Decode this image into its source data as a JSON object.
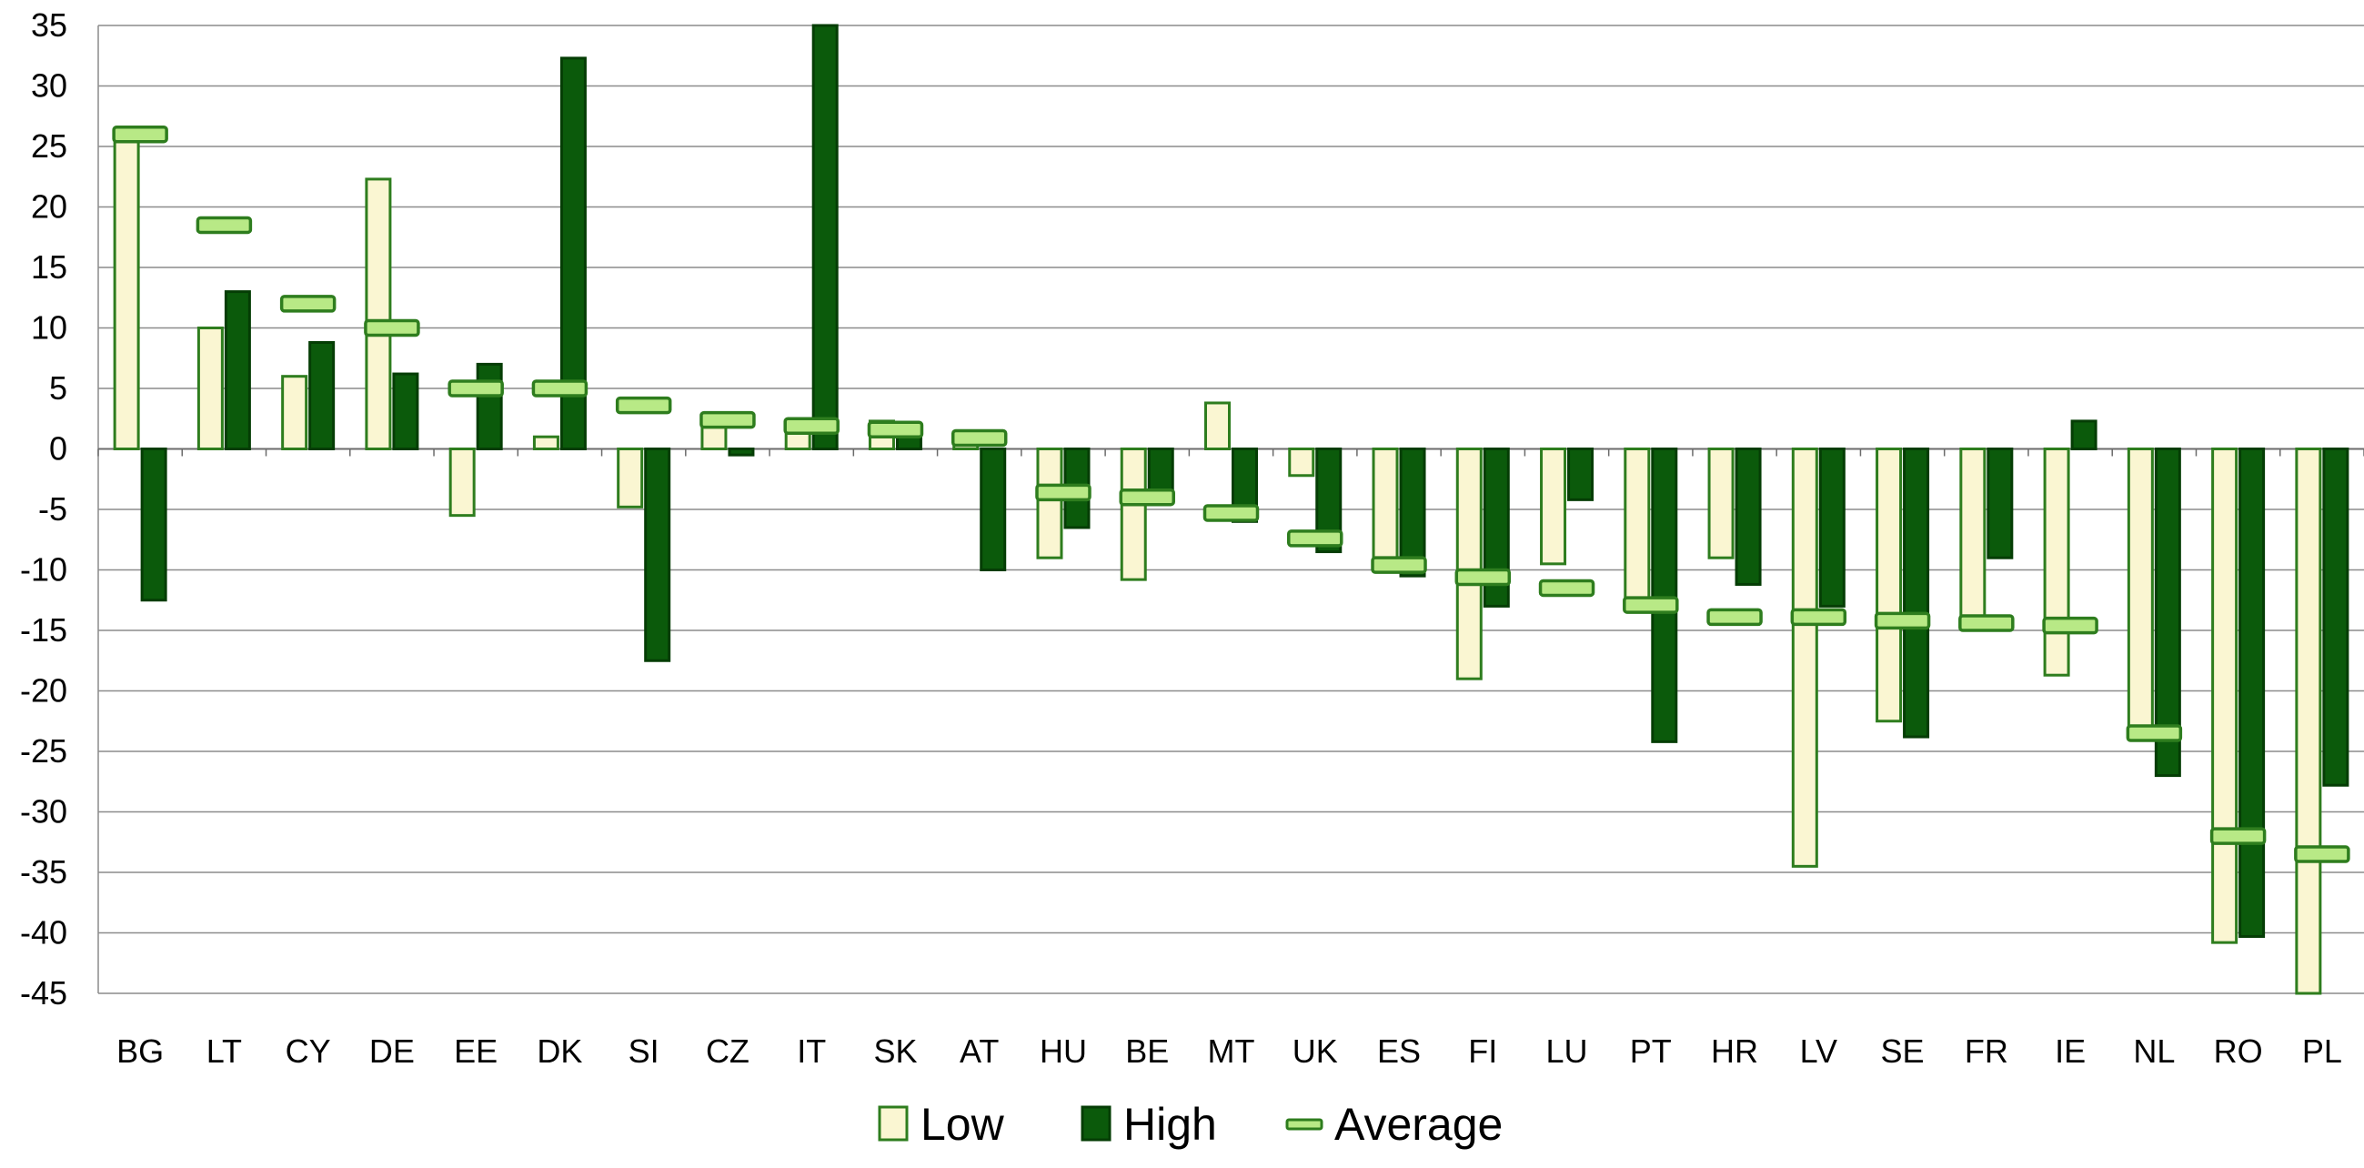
{
  "chart_data": {
    "type": "bar",
    "categories": [
      "BG",
      "LT",
      "CY",
      "DE",
      "EE",
      "DK",
      "SI",
      "CZ",
      "IT",
      "SK",
      "AT",
      "HU",
      "BE",
      "MT",
      "UK",
      "ES",
      "FI",
      "LU",
      "PT",
      "HR",
      "LV",
      "SE",
      "FR",
      "IE",
      "NL",
      "RO",
      "PL"
    ],
    "series": [
      {
        "name": "Low",
        "type": "bar",
        "color": "#FAF6D2",
        "border": "#2E7D1E",
        "values": [
          25.5,
          10,
          6,
          22.3,
          -5.5,
          1,
          -4.8,
          2,
          2,
          2.3,
          0.5,
          -9,
          -10.8,
          3.8,
          -2.2,
          -9.5,
          -19,
          -9.5,
          -13,
          -9,
          -34.5,
          -22.5,
          -14,
          -18.7,
          -24,
          -40.8,
          -45
        ]
      },
      {
        "name": "High",
        "type": "bar",
        "color": "#0B5A0B",
        "border": "#053D05",
        "values": [
          -12.5,
          13,
          8.8,
          6.2,
          7,
          32.3,
          -17.5,
          -0.5,
          35,
          1.2,
          -10,
          -6.5,
          -4,
          -6,
          -8.5,
          -10.5,
          -13,
          -4.2,
          -24.2,
          -11.2,
          -13,
          -23.8,
          -9,
          2.3,
          -27,
          -40.3,
          -27.8
        ]
      },
      {
        "name": "Average",
        "type": "marker",
        "color": "#B8E986",
        "border": "#2E7D1E",
        "values": [
          26,
          18.5,
          12,
          10,
          5,
          5,
          3.6,
          2.4,
          1.9,
          1.6,
          0.9,
          -3.6,
          -4,
          -5.3,
          -7.4,
          -9.6,
          -10.6,
          -11.5,
          -12.9,
          -13.9,
          -13.9,
          -14.2,
          -14.4,
          -14.6,
          -23.5,
          -32,
          -33.5
        ]
      }
    ],
    "ylim": [
      -45,
      35
    ],
    "yticks": [
      35,
      30,
      25,
      20,
      15,
      10,
      5,
      0,
      -5,
      -10,
      -15,
      -20,
      -25,
      -30,
      -35,
      -40,
      -45
    ],
    "grid": true,
    "legend_position": "bottom"
  }
}
